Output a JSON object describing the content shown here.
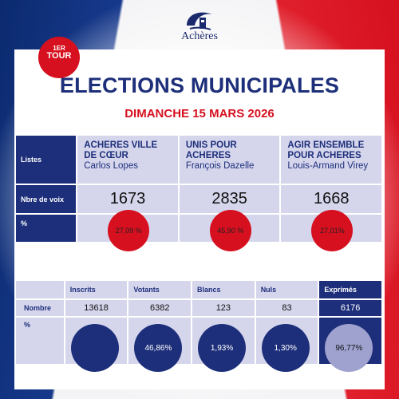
{
  "logo": {
    "text": "Achères"
  },
  "badge": {
    "sup": "1ER",
    "text": "TOUR"
  },
  "title": "ÉLECTIONS MUNICIPALES",
  "subtitle": "DIMANCHE 15 MARS 2026",
  "results": {
    "row_labels": {
      "lists": "Listes",
      "votes": "Nbre de voix",
      "percent": "%"
    },
    "lists": [
      {
        "name_line1": "ACHERES VILLE",
        "name_line2": "DE CŒUR",
        "leader": "Carlos Lopes",
        "votes": "1673",
        "percent": "27,09 %"
      },
      {
        "name_line1": "UNIS POUR",
        "name_line2": "ACHERES",
        "leader": "François Dazelle",
        "votes": "2835",
        "percent": "45,90 %"
      },
      {
        "name_line1": "AGIR ENSEMBLE",
        "name_line2": "POUR ACHERES",
        "leader": "Louis-Armand Virey",
        "votes": "1668",
        "percent": "27,01%"
      }
    ]
  },
  "participation": {
    "row_labels": {
      "count": "Nombre",
      "percent": "%"
    },
    "columns": [
      {
        "label": "Inscrits",
        "number": "13618",
        "percent": ""
      },
      {
        "label": "Votants",
        "number": "6382",
        "percent": "46,86%"
      },
      {
        "label": "Blancs",
        "number": "123",
        "percent": "1,93%"
      },
      {
        "label": "Nuls",
        "number": "83",
        "percent": "1,30%"
      },
      {
        "label": "Exprimés",
        "number": "6176",
        "percent": "96,77%"
      }
    ]
  },
  "colors": {
    "blue": "#1d2f7a",
    "red": "#d6101f",
    "lavender": "#d5d5ec",
    "light_purple": "#9fa2cf"
  }
}
